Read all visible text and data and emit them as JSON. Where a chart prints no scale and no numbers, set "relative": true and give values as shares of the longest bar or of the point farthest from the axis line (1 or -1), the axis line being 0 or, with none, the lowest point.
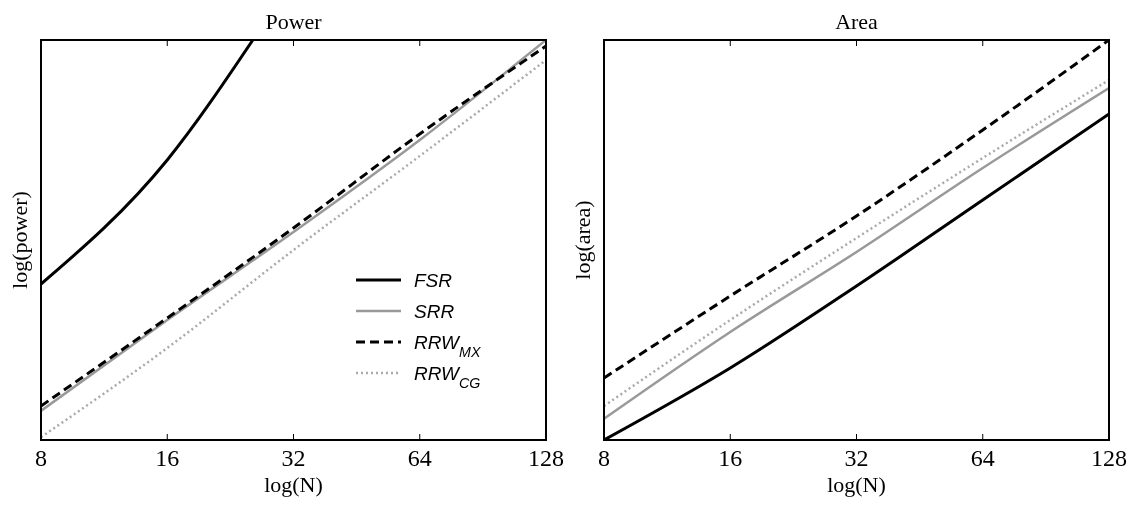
{
  "chart_data": [
    {
      "type": "line",
      "title": "Power",
      "xlabel": "log(N)",
      "ylabel": "log(power)",
      "relative": true,
      "log": "x",
      "xlim": [
        8,
        128
      ],
      "xticks": [
        8,
        16,
        32,
        64,
        128
      ],
      "legend": "bottom right",
      "grid": false,
      "series": [
        {
          "name": "FSR",
          "color": "#000000",
          "line_style": "solid",
          "x": [
            8,
            16,
            25.6
          ],
          "values": [
            0.39,
            0.7,
            1
          ]
        },
        {
          "name": "SRR",
          "color": "#999999",
          "line_style": "solid",
          "x": [
            8,
            16,
            32,
            64,
            128
          ],
          "values": [
            0.073,
            0.3,
            0.52,
            0.75,
            1
          ]
        },
        {
          "name": "RRW$_{MX}$",
          "color": "#000000",
          "line_style": "dashed",
          "x": [
            8,
            16,
            32,
            64,
            128
          ],
          "values": [
            0.085,
            0.305,
            0.53,
            0.765,
            0.985
          ]
        },
        {
          "name": "RRW$_{CG}$",
          "color": "#aaaaaa",
          "line_style": "dotted",
          "x": [
            8,
            16,
            32,
            64,
            128
          ],
          "values": [
            0.007,
            0.23,
            0.475,
            0.71,
            0.95
          ]
        }
      ]
    },
    {
      "type": "line",
      "title": "Area",
      "xlabel": "log(N)",
      "ylabel": "log(area)",
      "relative": true,
      "log": "x",
      "xlim": [
        8,
        128
      ],
      "xticks": [
        8,
        16,
        32,
        64,
        128
      ],
      "grid": false,
      "series": [
        {
          "color": "#000000",
          "line_style": "solid",
          "x": [
            8,
            16,
            32,
            64,
            128
          ],
          "values": [
            0,
            0.18,
            0.385,
            0.6,
            0.815
          ]
        },
        {
          "color": "#999999",
          "line_style": "solid",
          "x": [
            8,
            16,
            32,
            64,
            128
          ],
          "values": [
            0.053,
            0.27,
            0.47,
            0.68,
            0.88
          ]
        },
        {
          "color": "#000000",
          "line_style": "dashed",
          "x": [
            8,
            16,
            32,
            64,
            128
          ],
          "values": [
            0.155,
            0.36,
            0.56,
            0.775,
            1
          ]
        },
        {
          "color": "#aaaaaa",
          "line_style": "dotted",
          "x": [
            8,
            16,
            32,
            64,
            128
          ],
          "values": [
            0.085,
            0.3,
            0.505,
            0.705,
            0.9
          ]
        }
      ]
    }
  ]
}
